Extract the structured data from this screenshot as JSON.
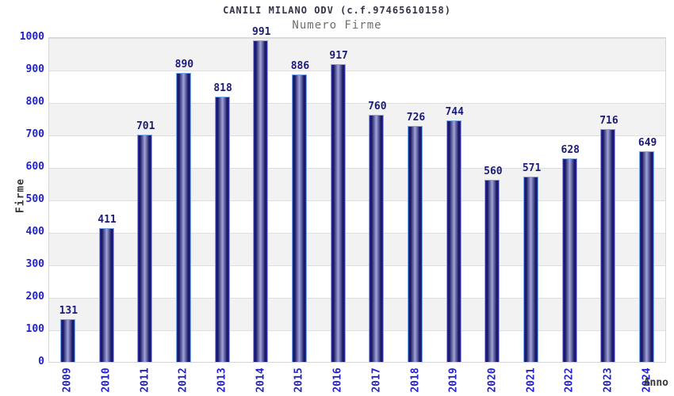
{
  "header": {
    "title": "CANILI MILANO ODV (c.f.97465610158)",
    "subtitle": "Numero Firme"
  },
  "chart_data": {
    "type": "bar",
    "title": "CANILI MILANO ODV (c.f.97465610158)",
    "subtitle": "Numero Firme",
    "xlabel": "Anno",
    "ylabel": "Firme",
    "categories": [
      "2009",
      "2010",
      "2011",
      "2012",
      "2013",
      "2014",
      "2015",
      "2016",
      "2017",
      "2018",
      "2019",
      "2020",
      "2021",
      "2022",
      "2023",
      "2024"
    ],
    "values": [
      131,
      411,
      701,
      890,
      818,
      991,
      886,
      917,
      760,
      726,
      744,
      560,
      571,
      628,
      716,
      649
    ],
    "ylim": [
      0,
      1000
    ],
    "ytick_step": 100,
    "ytick_labels": [
      "0",
      "100",
      "200",
      "300",
      "400",
      "500",
      "600",
      "700",
      "800",
      "900",
      "1000"
    ],
    "grid": "horizontal-bands-on",
    "legend": "none"
  },
  "colors": {
    "axis_tick_label": "#2222cc",
    "bar_value_label": "#1b1b78",
    "title": "#333349",
    "subtitle": "#6e6e6e",
    "axis_title": "#383838",
    "band_gray": "#f2f2f2",
    "band_white": "#ffffff",
    "plot_border": "#d6d6d6",
    "bar_border": "#79a8ec",
    "bar_dark": "#14145c",
    "bar_mid_highlight": "#a2a4da",
    "bar_edge_blue": "#2c2ca8"
  }
}
